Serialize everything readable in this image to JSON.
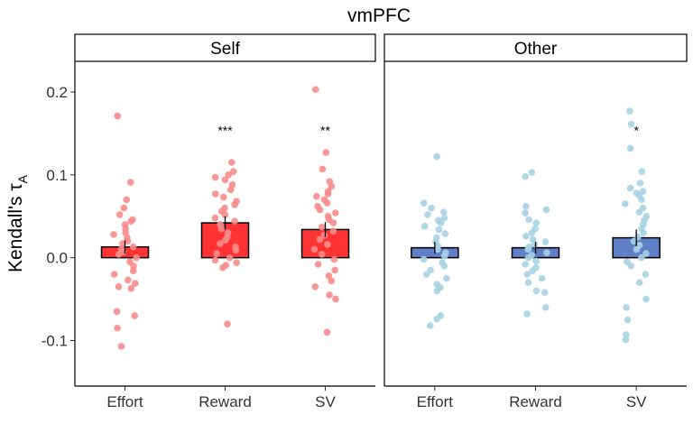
{
  "chart_data": {
    "type": "bar",
    "title": "vmPFC",
    "ylabel": "Kendall's τ",
    "ylabel_subscript": "A",
    "ylim": [
      -0.155,
      0.237
    ],
    "yticks": [
      -0.1,
      0.0,
      0.1,
      0.2
    ],
    "ytick_labels": [
      "-0.1",
      "0.0",
      "0.1",
      "0.2"
    ],
    "categories": [
      "Effort",
      "Reward",
      "SV"
    ],
    "panels": [
      {
        "name": "Self",
        "bar_color": "#ff3333",
        "point_color": "#f88b8b",
        "bars": [
          {
            "category": "Effort",
            "mean": 0.013,
            "se": 0.008,
            "sig": ""
          },
          {
            "category": "Reward",
            "mean": 0.042,
            "se": 0.008,
            "sig": "***"
          },
          {
            "category": "SV",
            "mean": 0.034,
            "se": 0.009,
            "sig": "**"
          }
        ],
        "points": [
          [
            0.171,
            0.091,
            0.07,
            0.06,
            0.052,
            0.046,
            0.044,
            0.04,
            0.035,
            0.03,
            0.028,
            0.024,
            0.02,
            0.017,
            0.013,
            0.01,
            0.007,
            0.004,
            0.0,
            -0.005,
            -0.01,
            -0.016,
            -0.02,
            -0.027,
            -0.031,
            -0.035,
            -0.037,
            -0.065,
            -0.07,
            -0.085,
            -0.107
          ],
          [
            0.115,
            0.104,
            0.1,
            0.097,
            0.094,
            0.088,
            0.082,
            0.077,
            0.073,
            0.068,
            0.064,
            0.06,
            0.056,
            0.052,
            0.048,
            0.044,
            0.04,
            0.035,
            0.03,
            0.025,
            0.021,
            0.017,
            0.013,
            0.009,
            0.005,
            0.0,
            -0.003,
            -0.006,
            -0.009,
            -0.012,
            -0.08
          ],
          [
            0.203,
            0.127,
            0.107,
            0.092,
            0.086,
            0.08,
            0.077,
            0.074,
            0.07,
            0.066,
            0.062,
            0.058,
            0.054,
            0.05,
            0.046,
            0.042,
            0.037,
            0.032,
            0.027,
            0.022,
            0.016,
            0.01,
            0.004,
            -0.002,
            -0.008,
            -0.015,
            -0.022,
            -0.028,
            -0.035,
            -0.045,
            -0.05,
            -0.09
          ]
        ]
      },
      {
        "name": "Other",
        "bar_color": "#5f7fc7",
        "point_color": "#a9d3e4",
        "bars": [
          {
            "category": "Effort",
            "mean": 0.012,
            "se": 0.007,
            "sig": ""
          },
          {
            "category": "Reward",
            "mean": 0.012,
            "se": 0.007,
            "sig": ""
          },
          {
            "category": "SV",
            "mean": 0.024,
            "se": 0.01,
            "sig": "*"
          }
        ],
        "points": [
          [
            0.122,
            0.066,
            0.06,
            0.055,
            0.052,
            0.048,
            0.045,
            0.042,
            0.038,
            0.034,
            0.029,
            0.024,
            0.019,
            0.014,
            0.01,
            0.006,
            0.002,
            -0.002,
            -0.006,
            -0.01,
            -0.015,
            -0.02,
            -0.025,
            -0.032,
            -0.036,
            -0.04,
            -0.07,
            -0.074,
            -0.082
          ],
          [
            0.103,
            0.098,
            0.062,
            0.058,
            0.054,
            0.046,
            0.042,
            0.035,
            0.03,
            0.026,
            0.022,
            0.019,
            0.016,
            0.013,
            0.01,
            0.006,
            0.003,
            0.0,
            -0.004,
            -0.008,
            -0.012,
            -0.016,
            -0.02,
            -0.025,
            -0.03,
            -0.04,
            -0.042,
            -0.06,
            -0.068
          ],
          [
            0.177,
            0.161,
            0.132,
            0.104,
            0.09,
            0.084,
            0.08,
            0.078,
            0.075,
            0.07,
            0.065,
            0.06,
            0.055,
            0.05,
            0.045,
            0.04,
            0.035,
            0.03,
            0.025,
            0.02,
            0.015,
            0.01,
            0.005,
            0.0,
            -0.005,
            -0.01,
            -0.02,
            -0.03,
            -0.05,
            -0.06,
            -0.075,
            -0.093,
            -0.099
          ]
        ]
      }
    ]
  }
}
